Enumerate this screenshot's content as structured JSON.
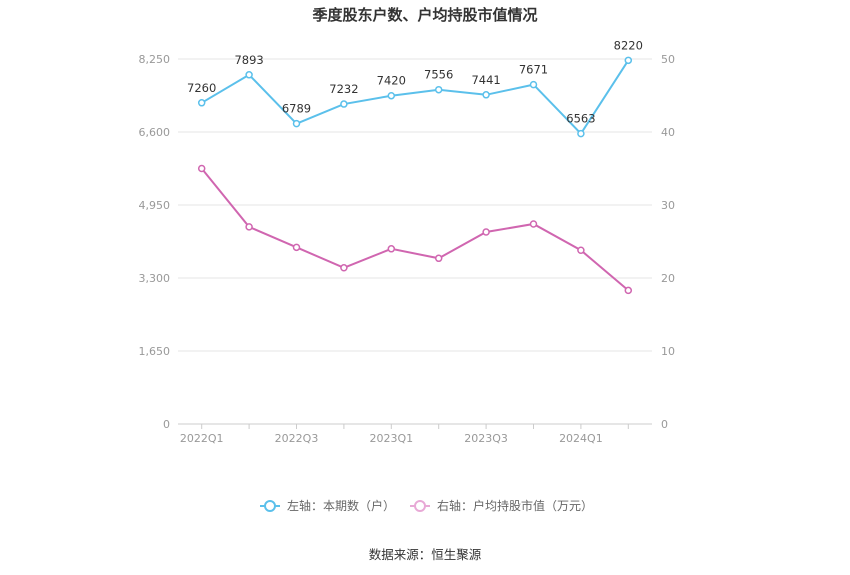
{
  "chart_data": {
    "type": "line",
    "title": "季度股东户数、户均持股市值情况",
    "categories": [
      "2022Q1",
      "2022Q2",
      "2022Q3",
      "2022Q4",
      "2023Q1",
      "2023Q2",
      "2023Q3",
      "2023Q4",
      "2024Q1",
      "2024Q2"
    ],
    "x_tick_labels": [
      "2022Q1",
      "2022Q3",
      "2023Q1",
      "2023Q3",
      "2024Q1"
    ],
    "left_axis": {
      "ylim": [
        0,
        8250
      ],
      "ticks": [
        "0",
        "1,650",
        "3,300",
        "4,950",
        "6,600",
        "8,250"
      ],
      "tick_values": [
        0,
        1650,
        3300,
        4950,
        6600,
        8250
      ]
    },
    "right_axis": {
      "ylim": [
        0,
        50
      ],
      "ticks": [
        "0",
        "10",
        "20",
        "30",
        "40",
        "50"
      ],
      "tick_values": [
        0,
        10,
        20,
        30,
        40,
        50
      ]
    },
    "series": [
      {
        "name": "左轴：本期数（户）",
        "axis": "left",
        "color": "#5bc0eb",
        "values": [
          7260,
          7893,
          6789,
          7232,
          7420,
          7556,
          7441,
          7671,
          6563,
          8220
        ],
        "labels": [
          "7260",
          "7893",
          "6789",
          "7232",
          "7420",
          "7556",
          "7441",
          "7671",
          "6563",
          "8220"
        ]
      },
      {
        "name": "右轴：户均持股市值（万元）",
        "axis": "right",
        "color": "#d066b0",
        "values": [
          35.0,
          27.0,
          24.2,
          21.4,
          24.0,
          22.7,
          26.3,
          27.4,
          23.8,
          18.3
        ]
      }
    ],
    "grid": true,
    "legend_position": "bottom-center",
    "source": "数据来源：恒生聚源"
  }
}
